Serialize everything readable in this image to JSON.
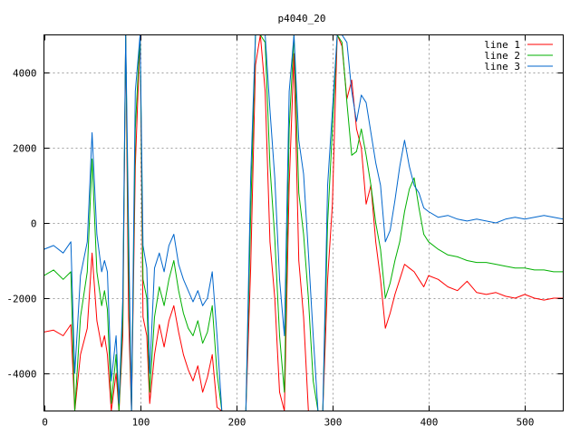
{
  "chart_data": {
    "type": "line",
    "title": "p4040_20",
    "xlabel": "",
    "ylabel": "",
    "xlim": [
      0,
      540
    ],
    "ylim": [
      -5000,
      5000
    ],
    "xticks": [
      0,
      100,
      200,
      300,
      400,
      500
    ],
    "yticks": [
      -4000,
      -2000,
      0,
      2000,
      4000
    ],
    "grid": true,
    "legend_position": "top-right",
    "series": [
      {
        "name": "line 1",
        "color": "#ff0000",
        "x": [
          0,
          10,
          20,
          28,
          32,
          38,
          45,
          50,
          55,
          60,
          63,
          66,
          70,
          75,
          78,
          82,
          85,
          88,
          91,
          95,
          100,
          103,
          107,
          110,
          115,
          120,
          125,
          130,
          135,
          140,
          145,
          150,
          155,
          160,
          165,
          170,
          175,
          180,
          185,
          190,
          195,
          200,
          205,
          210,
          215,
          220,
          225,
          230,
          235,
          240,
          245,
          250,
          255,
          260,
          265,
          270,
          275,
          280,
          285,
          290,
          295,
          300,
          305,
          310,
          315,
          320,
          325,
          330,
          335,
          340,
          345,
          350,
          355,
          360,
          365,
          370,
          375,
          380,
          385,
          390,
          395,
          400,
          410,
          420,
          430,
          440,
          450,
          460,
          470,
          480,
          490,
          500,
          510,
          520,
          530,
          540
        ],
        "y": [
          -2900,
          -2850,
          -3000,
          -2700,
          -5000,
          -3500,
          -2800,
          -800,
          -2600,
          -3300,
          -3000,
          -3500,
          -5000,
          -4000,
          -5000,
          -3000,
          5000,
          -2500,
          -5000,
          1500,
          5000,
          -2500,
          -3000,
          -4800,
          -3500,
          -2700,
          -3300,
          -2600,
          -2200,
          -2900,
          -3500,
          -3900,
          -4200,
          -3800,
          -4500,
          -4100,
          -3500,
          -4900,
          -5000,
          -5000,
          -5000,
          -5000,
          -5000,
          -5000,
          -1200,
          4200,
          5000,
          3500,
          -500,
          -2000,
          -4500,
          -5000,
          1000,
          4500,
          -1000,
          -2500,
          -5000,
          -5000,
          -5000,
          -5000,
          -1500,
          500,
          5000,
          4700,
          3300,
          3800,
          2500,
          2000,
          500,
          1000,
          -500,
          -1500,
          -2800,
          -2400,
          -1900,
          -1500,
          -1100,
          -1200,
          -1300,
          -1500,
          -1700,
          -1400,
          -1500,
          -1700,
          -1800,
          -1550,
          -1850,
          -1900,
          -1850,
          -1950,
          -2000,
          -1900,
          -2000,
          -2050,
          -2000,
          -2000
        ]
      },
      {
        "name": "line 2",
        "color": "#00b000",
        "x": [
          0,
          10,
          20,
          28,
          32,
          38,
          45,
          50,
          55,
          60,
          63,
          66,
          70,
          75,
          78,
          82,
          85,
          88,
          91,
          95,
          100,
          103,
          107,
          110,
          115,
          120,
          125,
          130,
          135,
          140,
          145,
          150,
          155,
          160,
          165,
          170,
          175,
          180,
          185,
          190,
          195,
          200,
          205,
          210,
          215,
          220,
          225,
          230,
          235,
          240,
          245,
          250,
          255,
          260,
          265,
          270,
          275,
          280,
          285,
          290,
          295,
          300,
          305,
          310,
          315,
          320,
          325,
          330,
          335,
          340,
          345,
          350,
          355,
          360,
          365,
          370,
          375,
          380,
          385,
          390,
          395,
          400,
          410,
          420,
          430,
          440,
          450,
          460,
          470,
          480,
          490,
          500,
          510,
          520,
          530,
          540
        ],
        "y": [
          -1400,
          -1250,
          -1500,
          -1300,
          -5000,
          -2500,
          -1300,
          1700,
          -1300,
          -2200,
          -1800,
          -2300,
          -4800,
          -3500,
          -5000,
          -2500,
          5000,
          -1200,
          -5000,
          2500,
          5000,
          -1500,
          -2000,
          -4500,
          -2500,
          -1700,
          -2200,
          -1500,
          -1000,
          -1800,
          -2400,
          -2800,
          -3000,
          -2600,
          -3200,
          -2900,
          -2200,
          -4000,
          -5000,
          -5000,
          -5000,
          -5000,
          -5000,
          -5000,
          200,
          5000,
          5000,
          4800,
          1500,
          -400,
          -3000,
          -4500,
          2500,
          5000,
          800,
          -300,
          -2000,
          -4200,
          -5000,
          -5000,
          0,
          2500,
          5000,
          4800,
          3200,
          1800,
          1900,
          2500,
          1800,
          1000,
          0,
          -700,
          -2000,
          -1600,
          -1000,
          -500,
          300,
          900,
          1200,
          400,
          -300,
          -500,
          -700,
          -850,
          -900,
          -1000,
          -1050,
          -1050,
          -1100,
          -1150,
          -1200,
          -1200,
          -1250,
          -1250,
          -1300,
          -1300
        ]
      },
      {
        "name": "line 3",
        "color": "#0066cc",
        "x": [
          0,
          10,
          20,
          28,
          32,
          38,
          45,
          50,
          55,
          60,
          63,
          66,
          70,
          75,
          78,
          82,
          85,
          88,
          91,
          95,
          100,
          103,
          107,
          110,
          115,
          120,
          125,
          130,
          135,
          140,
          145,
          150,
          155,
          160,
          165,
          170,
          175,
          180,
          185,
          190,
          195,
          200,
          205,
          210,
          215,
          220,
          225,
          230,
          235,
          240,
          245,
          250,
          255,
          260,
          265,
          270,
          275,
          280,
          285,
          290,
          295,
          300,
          305,
          310,
          315,
          320,
          325,
          330,
          335,
          340,
          345,
          350,
          355,
          360,
          365,
          370,
          375,
          380,
          385,
          390,
          395,
          400,
          410,
          420,
          430,
          440,
          450,
          460,
          470,
          480,
          490,
          500,
          510,
          520,
          530,
          540
        ],
        "y": [
          -700,
          -600,
          -800,
          -500,
          -4000,
          -1400,
          -500,
          2400,
          -300,
          -1300,
          -1000,
          -1300,
          -4200,
          -3000,
          -4800,
          -2000,
          5000,
          -200,
          -5000,
          3500,
          5000,
          -600,
          -1200,
          -4000,
          -1200,
          -800,
          -1300,
          -600,
          -300,
          -1100,
          -1500,
          -1800,
          -2100,
          -1800,
          -2200,
          -2000,
          -1300,
          -3000,
          -5000,
          -5000,
          -5000,
          -5000,
          -5000,
          -5000,
          1200,
          5000,
          5000,
          5000,
          3000,
          1200,
          -1500,
          -3000,
          3500,
          5000,
          2200,
          1300,
          -800,
          -3000,
          -5000,
          -5000,
          1000,
          3000,
          5000,
          5000,
          4800,
          3500,
          2700,
          3400,
          3200,
          2400,
          1600,
          1000,
          -500,
          -200,
          600,
          1500,
          2200,
          1500,
          1000,
          800,
          400,
          300,
          150,
          200,
          100,
          50,
          100,
          50,
          0,
          100,
          150,
          100,
          150,
          200,
          150,
          100
        ]
      }
    ]
  }
}
